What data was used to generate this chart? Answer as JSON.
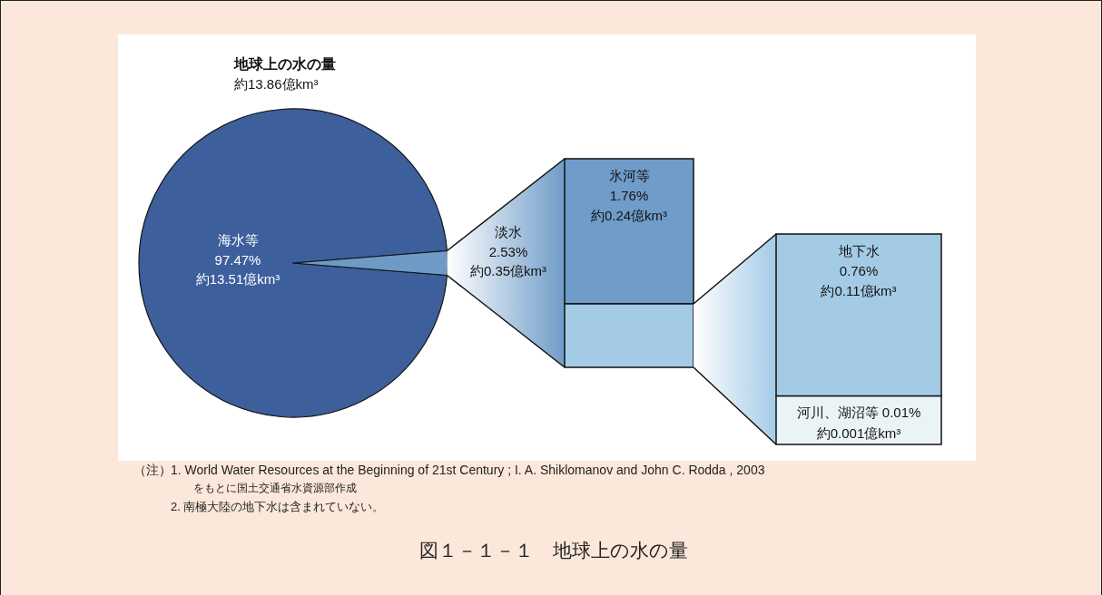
{
  "chart_data": [
    {
      "type": "pie",
      "title": "地球上の水の量",
      "subtitle": "約13.86億km³",
      "categories": [
        "海水等",
        "淡水"
      ],
      "values": [
        97.47,
        2.53
      ],
      "colors": [
        "#3d5f9c",
        "#6d9bc6"
      ],
      "value_labels": [
        "97.47%",
        "2.53%"
      ],
      "annotations": [
        {
          "text": "約13.51億km³",
          "x": "海水等"
        },
        {
          "text": "約0.35億km³",
          "x": "淡水"
        },
        "（注）",
        "1. World Water Resources at the Beginning of 21st Century ; I. A. Shiklomanov and John C. Rodda , 2003",
        "をもとに国土交通省水資源部作成",
        "2. 南極大陸の地下水は含まれていない。",
        "図１－１－１　地球上の水の量"
      ]
    },
    {
      "type": "other",
      "categories": [
        "氷河等",
        null
      ],
      "values": [
        1.76,
        null
      ],
      "value_labels": [
        "1.76%",
        null
      ],
      "colors": [
        "#6f9cc8",
        "#a4cbe6"
      ],
      "annotations": [
        {
          "text": "約0.24億km³",
          "x": "氷河等"
        }
      ]
    },
    {
      "type": "other",
      "categories": [
        "地下水",
        "河川、湖沼等"
      ],
      "values": [
        0.76,
        0.01
      ],
      "value_labels": [
        "0.76%",
        "0.01%"
      ],
      "colors": [
        "#a4cbe6",
        "#eaf4f6"
      ],
      "annotations": [
        {
          "text": "約0.11億km³",
          "x": "地下水"
        },
        {
          "text": "約0.001億km³",
          "x": "河川、湖沼等"
        }
      ]
    }
  ]
}
